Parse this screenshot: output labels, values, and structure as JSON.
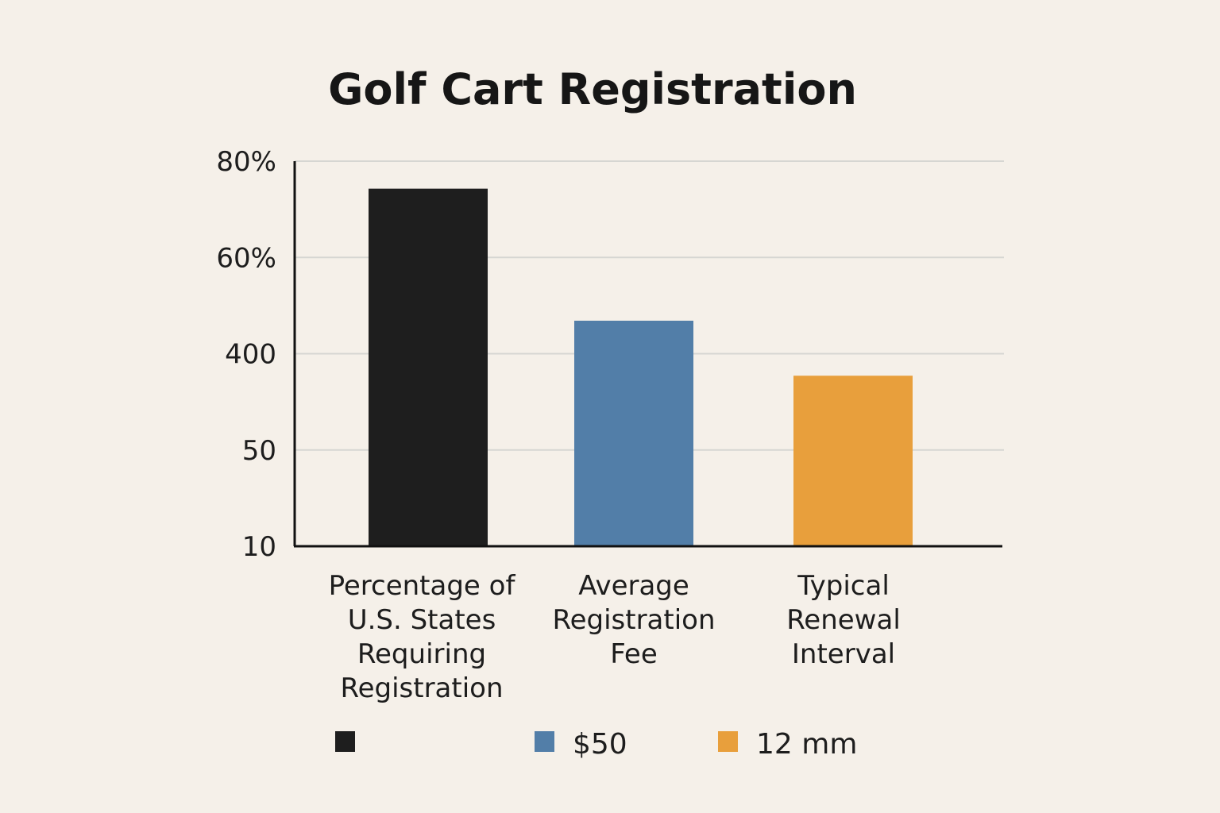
{
  "chart_data": {
    "type": "bar",
    "title": "Golf Cart Registration",
    "xlabel": "",
    "ylabel": "",
    "y_tick_labels": [
      "10",
      "50",
      "400",
      "60%",
      "80%"
    ],
    "ylim": [
      10,
      80
    ],
    "grid": true,
    "legend_position": "bottom",
    "categories": [
      [
        "Percentage of",
        "U.S. States",
        "Requiring",
        "Registration"
      ],
      [
        "Average",
        "Registration",
        "Fee"
      ],
      [
        "Typical",
        "Renewal",
        "Interval"
      ]
    ],
    "values": [
      75,
      51,
      41
    ],
    "colors": [
      "#1e1e1e",
      "#527ea8",
      "#e89f3c"
    ],
    "legend": [
      {
        "label": "",
        "color": "#1e1e1e"
      },
      {
        "label": "$50",
        "color": "#527ea8"
      },
      {
        "label": "12 mm",
        "color": "#e89f3c"
      }
    ]
  }
}
